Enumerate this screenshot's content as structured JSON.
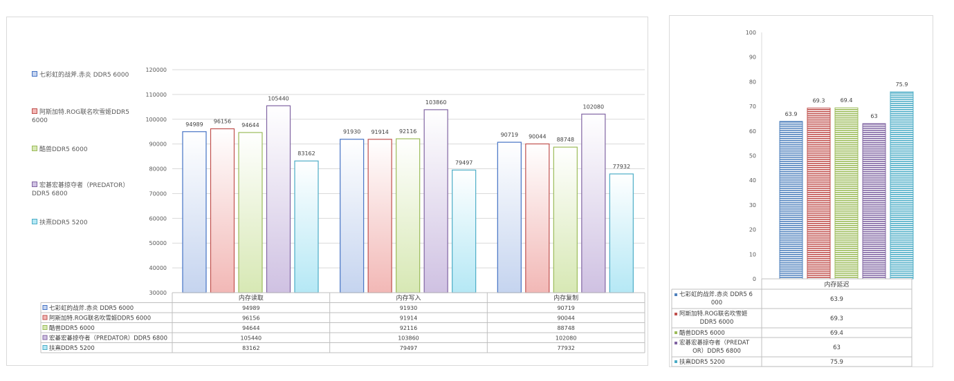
{
  "chart_data": [
    {
      "type": "bar",
      "categories": [
        "内存读取",
        "内存写入",
        "内存复制"
      ],
      "ylim": [
        30000,
        120000
      ],
      "yticks": [
        30000,
        40000,
        50000,
        60000,
        70000,
        80000,
        90000,
        100000,
        110000,
        120000
      ],
      "grid": true,
      "legend": "left",
      "data_table": true,
      "series": [
        {
          "name": "七彩虹的战斧.赤炎 DDR5 6000",
          "values": [
            94989,
            91930,
            90719
          ],
          "color": "#4472c4",
          "fill": "#c5d4ef"
        },
        {
          "name": "阿斯加特.ROG联名吹雪姬DDR5 6000",
          "values": [
            96156,
            91914,
            90044
          ],
          "color": "#c0504d",
          "fill": "#f2b8b6"
        },
        {
          "name": "酷兽DDR5 6000",
          "values": [
            94644,
            92116,
            88748
          ],
          "color": "#9bbb59",
          "fill": "#d7e8b4"
        },
        {
          "name": "宏碁宏碁掠夺者（PREDATOR）DDR5 6800",
          "values": [
            105440,
            103860,
            102080
          ],
          "color": "#8064a2",
          "fill": "#cfc1e2"
        },
        {
          "name": "扶熹DDR5 5200",
          "values": [
            83162,
            79497,
            77932
          ],
          "color": "#4bacc6",
          "fill": "#b5e8f5"
        }
      ]
    },
    {
      "type": "bar",
      "categories": [
        "内存延迟"
      ],
      "ylim": [
        0,
        100
      ],
      "yticks": [
        0,
        10,
        20,
        30,
        40,
        50,
        60,
        70,
        80,
        90,
        100
      ],
      "grid": false,
      "data_table": true,
      "series": [
        {
          "name": "七彩虹的战斧.赤炎 DDR5 6000",
          "values": [
            63.9
          ],
          "color": "#4f81bd"
        },
        {
          "name": "阿斯加特.ROG联名吹雪姬DDR5 6000",
          "values": [
            69.3
          ],
          "color": "#c0504d"
        },
        {
          "name": "酷兽DDR5 6000",
          "values": [
            69.4
          ],
          "color": "#9bbb59"
        },
        {
          "name": "宏碁宏碁掠夺者（PREDATOR）DDR5 6800",
          "values": [
            63
          ],
          "color": "#8064a2"
        },
        {
          "name": "扶熹DDR5 5200",
          "values": [
            75.9
          ],
          "color": "#4bacc6"
        }
      ]
    }
  ]
}
